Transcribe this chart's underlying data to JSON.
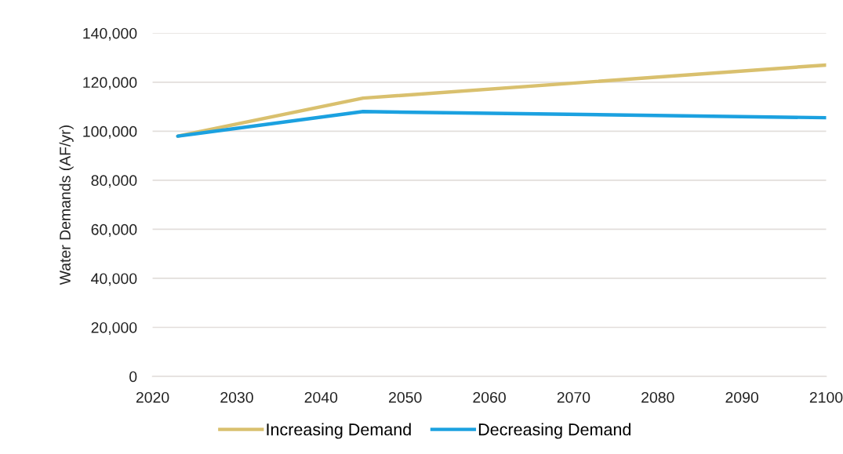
{
  "chart_data": {
    "type": "line",
    "x": [
      2023,
      2045,
      2100
    ],
    "series": [
      {
        "name": "Increasing Demand",
        "color": "#d9c06e",
        "values": [
          98000,
          113500,
          127000
        ]
      },
      {
        "name": "Decreasing Demand",
        "color": "#1ba1e0",
        "values": [
          98000,
          108000,
          105500
        ]
      }
    ],
    "ylabel": "Water Demands (AF/yr)",
    "xlim": [
      2020,
      2100
    ],
    "ylim": [
      0,
      140000
    ],
    "xticks": [
      2020,
      2030,
      2040,
      2050,
      2060,
      2070,
      2080,
      2090,
      2100
    ],
    "yticks": [
      0,
      {
        "value": 20000,
        "label": "20,000"
      },
      {
        "value": 40000,
        "label": "40,000"
      },
      {
        "value": 60000,
        "label": "60,000"
      },
      {
        "value": 80000,
        "label": "80,000"
      },
      {
        "value": 100000,
        "label": "100,000"
      },
      {
        "value": 120000,
        "label": "120,000"
      },
      {
        "value": 140000,
        "label": "140,000"
      }
    ],
    "grid": "y",
    "legend": "bottom",
    "line_style": "solid"
  }
}
